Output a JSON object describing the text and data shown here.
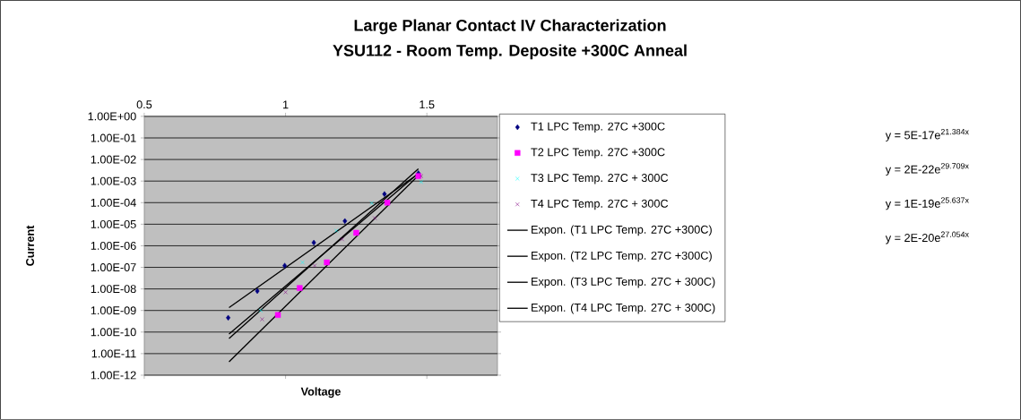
{
  "chart_data": {
    "type": "scatter",
    "title": "Large Planar Contact IV Characterization",
    "subtitle": "YSU112 - Room Temp. Deposite +300C Anneal",
    "xlabel": "Voltage",
    "ylabel": "Current",
    "log": "y",
    "grid": "y",
    "legend": "right",
    "xlim": [
      0.5,
      1.75
    ],
    "xticks": [
      0.5,
      1,
      1.5
    ],
    "ylim": [
      1e-12,
      1
    ],
    "yticks": [
      {
        "value": 1e-12,
        "label": "1.00E-12"
      },
      {
        "value": 1e-11,
        "label": "1.00E-11"
      },
      {
        "value": 1e-10,
        "label": "1.00E-10"
      },
      {
        "value": 1e-09,
        "label": "1.00E-09"
      },
      {
        "value": 1e-08,
        "label": "1.00E-08"
      },
      {
        "value": 1e-07,
        "label": "1.00E-07"
      },
      {
        "value": 1e-06,
        "label": "1.00E-06"
      },
      {
        "value": 1e-05,
        "label": "1.00E-05"
      },
      {
        "value": 0.0001,
        "label": "1.00E-04"
      },
      {
        "value": 0.001,
        "label": "1.00E-03"
      },
      {
        "value": 0.01,
        "label": "1.00E-02"
      },
      {
        "value": 0.1,
        "label": "1.00E-01"
      },
      {
        "value": 1,
        "label": "1.00E+00"
      }
    ],
    "series": [
      {
        "name": "T1 LPC Temp. 27C +300C",
        "type": "scatter",
        "marker": "diamond",
        "color": "#000080",
        "x": [
          0.797,
          0.9,
          0.997,
          1.1,
          1.21,
          1.35,
          1.47
        ],
        "values": [
          4.6e-10,
          8e-09,
          1.2e-07,
          1.4e-06,
          1.4e-05,
          0.00025,
          0.0023
        ]
      },
      {
        "name": "T2 LPC Temp. 27C +300C",
        "type": "scatter",
        "marker": "square",
        "color": "#ff00ff",
        "x": [
          0.973,
          1.05,
          1.146,
          1.25,
          1.36,
          1.47
        ],
        "values": [
          6.2e-10,
          1.1e-08,
          1.7e-07,
          4e-06,
          0.0001,
          0.0017
        ]
      },
      {
        "name": "T3 LPC Temp. 27C + 300C",
        "type": "scatter",
        "marker": "cross",
        "color": "#00ffff",
        "x": [
          0.912,
          1.06,
          1.18,
          1.305,
          1.48
        ],
        "values": [
          1e-09,
          1.7e-07,
          5e-06,
          9.5e-05,
          0.0009
        ]
      },
      {
        "name": "T4 LPC Temp. 27C + 300C",
        "type": "scatter",
        "marker": "cross",
        "color": "#800080",
        "x": [
          0.917,
          1.0,
          1.103,
          1.2,
          1.316,
          1.48
        ],
        "values": [
          3.9e-10,
          7e-09,
          1.2e-07,
          2e-06,
          1.9e-05,
          0.0017
        ]
      },
      {
        "name": "Expon. (T1 LPC Temp. 27C +300C)",
        "type": "line",
        "color": "#000000",
        "x": [
          0.8,
          1.47
        ],
        "values": [
          1.35e-09,
          0.0022
        ]
      },
      {
        "name": "Expon. (T2 LPC Temp. 27C +300C)",
        "type": "line",
        "color": "#000000",
        "x": [
          0.8,
          1.47
        ],
        "values": [
          4.2e-12,
          0.0018
        ]
      },
      {
        "name": "Expon. (T3 LPC Temp. 27C + 300C)",
        "type": "line",
        "color": "#000000",
        "x": [
          0.8,
          1.47
        ],
        "values": [
          8.1e-11,
          0.0023
        ]
      },
      {
        "name": "Expon. (T4 LPC Temp. 27C + 300C)",
        "type": "line",
        "color": "#000000",
        "x": [
          0.8,
          1.47
        ],
        "values": [
          5e-11,
          0.0037
        ]
      }
    ],
    "annotations": [
      "y = 5E-17e$^{21.384x}$",
      "y = 2E-22e$^{29.709x}$",
      "y = 1E-19e$^{25.637x}$",
      "y = 2E-20e$^{27.054x}$"
    ]
  }
}
